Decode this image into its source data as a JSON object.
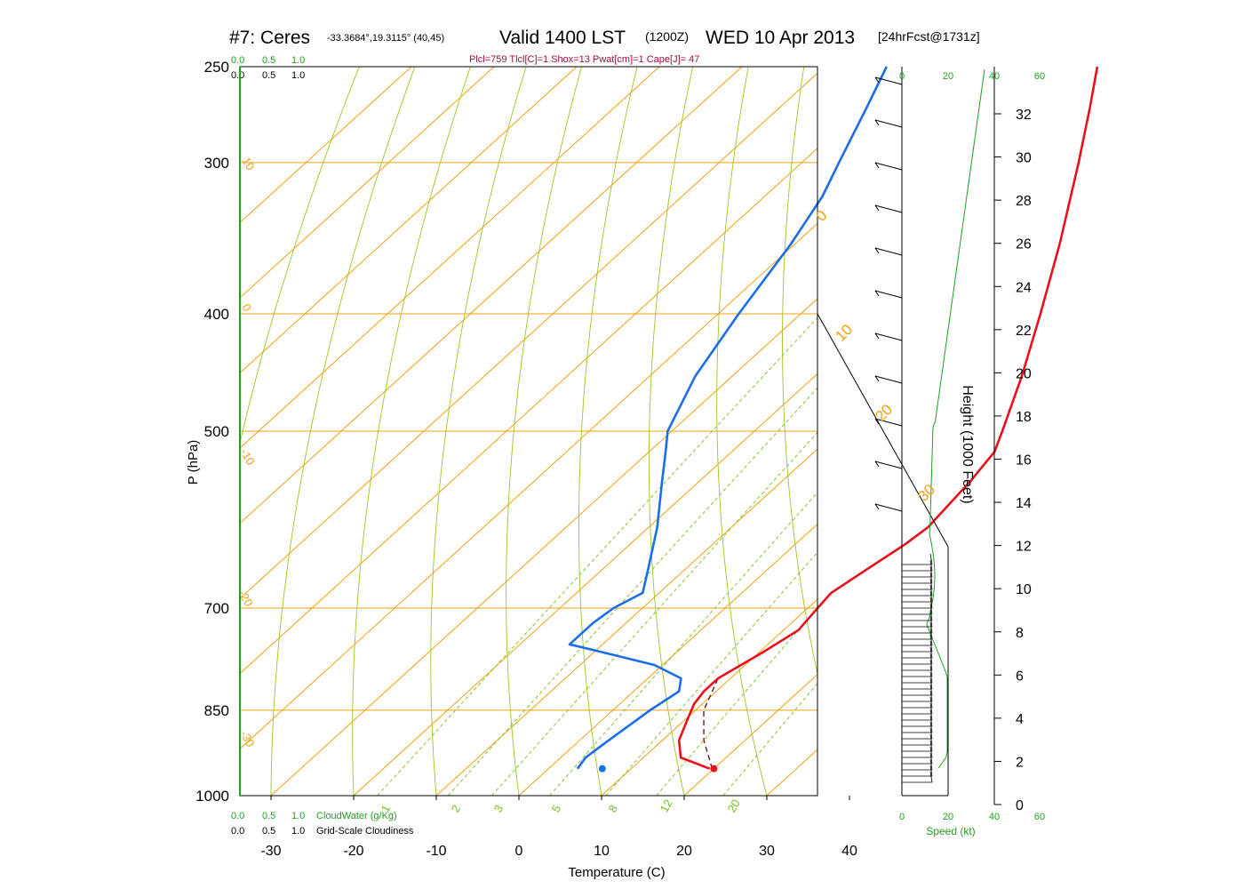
{
  "title": {
    "station": "#7: Ceres",
    "coords": "-33.3684°,19.3115° (40,45)",
    "valid": "Valid 1400 LST",
    "utc": "(1200Z)",
    "date": "WED 10 Apr 2013",
    "forecast": "[24hrFcst@1731z]"
  },
  "indices": "Plcl=759 Tlcl[C]=1 Shox=13 Pwat[cm]=1 Cape[J]= 47",
  "colors": {
    "temperature": "#e8101a",
    "dewpoint": "#1a6ee8",
    "isotherm": "#f0a010",
    "dry_adiabat": "#9ac820",
    "mixing_ratio": "#7ac020",
    "cloud": "#20a020",
    "parcel": "#5a1010"
  },
  "scales": {
    "cloud_top": [
      "0.0",
      "0.5",
      "1.0"
    ],
    "cloud_bottom": [
      "0.0",
      "0.5",
      "1.0"
    ],
    "cloud_water_label": "CloudWater (g/Kg)",
    "cloudiness_label": "Grid-Scale Cloudiness"
  },
  "wind_axis": {
    "top_labels": [
      "0",
      "20",
      "40",
      "60"
    ],
    "bottom_labels": [
      "0",
      "20",
      "40",
      "60"
    ],
    "label": "Speed (kt)"
  },
  "height_axis": {
    "label": "Height (1000 Feet)",
    "ticks": [
      "0",
      "2",
      "4",
      "6",
      "8",
      "10",
      "12",
      "14",
      "16",
      "18",
      "20",
      "22",
      "24",
      "26",
      "28",
      "30",
      "32"
    ]
  },
  "chart_data": {
    "type": "line",
    "title": "#7: Ceres -33.3684°,19.3115° (40,45) Valid 1400 LST (1200Z) WED 10 Apr 2013 [24hrFcst@1731z]",
    "xlabel": "Temperature (C)",
    "ylabel": "P (hPa)",
    "x_ticks": [
      "-30",
      "-20",
      "-10",
      "0",
      "10",
      "20",
      "30",
      "40"
    ],
    "pressure_levels": [
      "250",
      "300",
      "400",
      "500",
      "700",
      "850",
      "1000"
    ],
    "isotherm_labels": [
      "10",
      "0",
      "-10",
      "-20",
      "-30",
      "0",
      "10",
      "20",
      "30"
    ],
    "mixing_ratio_labels": [
      "1",
      "2",
      "3",
      "5",
      "8",
      "12",
      "20"
    ],
    "series": [
      {
        "name": "Temperature",
        "points": [
          {
            "p": 950,
            "t": 19.5
          },
          {
            "p": 930,
            "t": 14.5
          },
          {
            "p": 900,
            "t": 12.0
          },
          {
            "p": 870,
            "t": 10.5
          },
          {
            "p": 840,
            "t": 9.0
          },
          {
            "p": 820,
            "t": 8.5
          },
          {
            "p": 800,
            "t": 8.5
          },
          {
            "p": 760,
            "t": 10.5
          },
          {
            "p": 730,
            "t": 11.8
          },
          {
            "p": 700,
            "t": 11.2
          },
          {
            "p": 680,
            "t": 10.8
          },
          {
            "p": 650,
            "t": 12.0
          },
          {
            "p": 620,
            "t": 13.3
          },
          {
            "p": 600,
            "t": 13.8
          },
          {
            "p": 550,
            "t": 12.8
          },
          {
            "p": 520,
            "t": 11.8
          },
          {
            "p": 500,
            "t": 10.0
          },
          {
            "p": 450,
            "t": 5.0
          },
          {
            "p": 400,
            "t": -1.0
          },
          {
            "p": 350,
            "t": -8.0
          },
          {
            "p": 300,
            "t": -16.5
          },
          {
            "p": 270,
            "t": -22.5
          },
          {
            "p": 250,
            "t": -27.0
          }
        ]
      },
      {
        "name": "Dewpoint",
        "points": [
          {
            "p": 950,
            "t": 3.5
          },
          {
            "p": 930,
            "t": 3.0
          },
          {
            "p": 900,
            "t": 3.5
          },
          {
            "p": 850,
            "t": 4.5
          },
          {
            "p": 820,
            "t": 5.5
          },
          {
            "p": 800,
            "t": 4.0
          },
          {
            "p": 780,
            "t": -1.0
          },
          {
            "p": 760,
            "t": -9.5
          },
          {
            "p": 750,
            "t": -14.0
          },
          {
            "p": 720,
            "t": -14.0
          },
          {
            "p": 700,
            "t": -13.5
          },
          {
            "p": 680,
            "t": -12.0
          },
          {
            "p": 650,
            "t": -14.5
          },
          {
            "p": 600,
            "t": -19.0
          },
          {
            "p": 550,
            "t": -24.5
          },
          {
            "p": 520,
            "t": -28.0
          },
          {
            "p": 500,
            "t": -30.5
          },
          {
            "p": 450,
            "t": -34.5
          },
          {
            "p": 400,
            "t": -37.5
          },
          {
            "p": 350,
            "t": -40.5
          },
          {
            "p": 320,
            "t": -43.0
          },
          {
            "p": 300,
            "t": -45.5
          },
          {
            "p": 270,
            "t": -49.5
          },
          {
            "p": 250,
            "t": -52.5
          }
        ]
      },
      {
        "name": "Parcel",
        "points": [
          {
            "p": 950,
            "t": 19.8
          },
          {
            "p": 900,
            "t": 15.0
          },
          {
            "p": 850,
            "t": 11.0
          },
          {
            "p": 800,
            "t": 8.5
          }
        ]
      }
    ],
    "surface_markers": [
      {
        "name": "surface temperature",
        "p": 950,
        "t": 20.0
      },
      {
        "name": "surface dewpoint",
        "p": 950,
        "t": 6.5
      }
    ]
  }
}
